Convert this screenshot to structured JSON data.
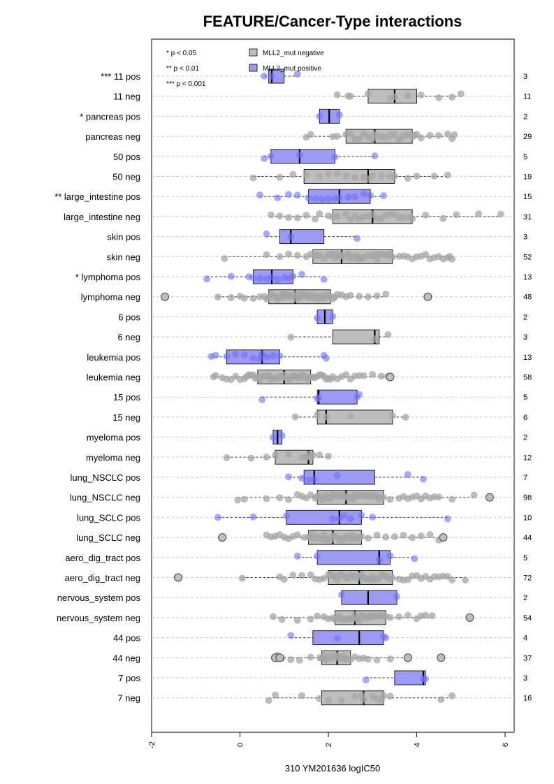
{
  "chart_data": {
    "type": "boxplot",
    "orientation": "horizontal",
    "title": "FEATURE/Cancer-Type interactions",
    "xlabel": "310 YM201636 logIC50",
    "xlim": [
      -2,
      6
    ],
    "xticks": [
      "-2",
      "0",
      "2",
      "4",
      "6"
    ],
    "grid": "horizontal dashed lines at each row",
    "legend_position": "top-left",
    "legend": [
      {
        "name": "MLL2_mut negative",
        "color": "#bebebe"
      },
      {
        "name": "MLL2_mut positive",
        "color": "#9b9bf4"
      }
    ],
    "significance_notes": [
      "* p < 0.05",
      "** p < 0.01",
      "*** p < 0.001"
    ],
    "series_colors": {
      "neg_fill": "#bebebe",
      "pos_fill": "#9b9bf4",
      "neg_point": "#a6a6a6",
      "pos_point": "#6f6ff5"
    },
    "rows": [
      {
        "label": "*** 11 pos",
        "group": "pos",
        "n": "3",
        "q1": 0.65,
        "median": 0.72,
        "q3": 1.0,
        "wlo": 0.55,
        "whi": 1.3,
        "points": [
          0.55,
          0.72,
          1.3
        ],
        "outliers": []
      },
      {
        "label": "11 neg",
        "group": "neg",
        "n": "11",
        "q1": 2.9,
        "median": 3.5,
        "q3": 4.0,
        "wlo": 2.2,
        "whi": 5.0,
        "points": [
          2.2,
          2.45,
          2.5,
          2.9,
          3.4,
          3.5,
          3.8,
          4.1,
          4.5,
          4.8,
          5.0
        ],
        "outliers": []
      },
      {
        "label": "* pancreas pos",
        "group": "pos",
        "n": "2",
        "q1": 1.8,
        "median": 2.02,
        "q3": 2.25,
        "wlo": 1.8,
        "whi": 2.25,
        "points": [
          1.8,
          2.25
        ],
        "outliers": []
      },
      {
        "label": "pancreas neg",
        "group": "neg",
        "n": "29",
        "q1": 2.4,
        "median": 3.05,
        "q3": 3.9,
        "wlo": 1.5,
        "whi": 4.85,
        "points": [
          1.5,
          1.6,
          2.1,
          2.2,
          2.4,
          2.5,
          2.6,
          2.7,
          2.8,
          2.9,
          3.0,
          3.05,
          3.1,
          3.2,
          3.3,
          3.4,
          3.5,
          3.6,
          3.7,
          3.8,
          3.9,
          3.95,
          4.0,
          4.1,
          4.3,
          4.5,
          4.7,
          4.8,
          4.85
        ],
        "outliers": []
      },
      {
        "label": "50 pos",
        "group": "pos",
        "n": "5",
        "q1": 0.7,
        "median": 1.35,
        "q3": 2.15,
        "wlo": 0.55,
        "whi": 3.05,
        "points": [
          0.55,
          0.7,
          1.35,
          2.15,
          3.05
        ],
        "outliers": []
      },
      {
        "label": "50 neg",
        "group": "neg",
        "n": "19",
        "q1": 1.45,
        "median": 2.9,
        "q3": 3.5,
        "wlo": 0.3,
        "whi": 4.7,
        "points": [
          0.3,
          0.9,
          1.2,
          1.5,
          1.8,
          2.0,
          2.2,
          2.4,
          2.6,
          2.8,
          2.9,
          3.0,
          3.2,
          3.4,
          3.5,
          3.8,
          4.0,
          4.4,
          4.7
        ],
        "outliers": []
      },
      {
        "label": "** large_intestine pos",
        "group": "pos",
        "n": "15",
        "q1": 1.55,
        "median": 2.25,
        "q3": 2.95,
        "wlo": 0.45,
        "whi": 3.25,
        "points": [
          0.45,
          0.85,
          1.1,
          1.3,
          1.55,
          1.7,
          1.85,
          2.0,
          2.15,
          2.25,
          2.45,
          2.6,
          2.8,
          2.95,
          3.25
        ],
        "outliers": []
      },
      {
        "label": "large_intestine neg",
        "group": "neg",
        "n": "31",
        "q1": 2.1,
        "median": 3.0,
        "q3": 3.9,
        "wlo": 0.7,
        "whi": 5.9,
        "points": [
          0.7,
          0.9,
          1.1,
          1.3,
          1.5,
          1.7,
          1.8,
          2.0,
          2.1,
          2.2,
          2.4,
          2.5,
          2.6,
          2.7,
          2.8,
          2.9,
          3.0,
          3.1,
          3.2,
          3.3,
          3.4,
          3.5,
          3.6,
          3.7,
          3.85,
          3.9,
          4.2,
          4.6,
          4.9,
          5.4,
          5.9
        ],
        "outliers": []
      },
      {
        "label": "skin pos",
        "group": "pos",
        "n": "3",
        "q1": 0.9,
        "median": 1.15,
        "q3": 1.9,
        "wlo": 0.6,
        "whi": 2.65,
        "points": [
          0.6,
          1.15,
          2.65
        ],
        "outliers": []
      },
      {
        "label": "skin neg",
        "group": "neg",
        "n": "52",
        "q1": 1.65,
        "median": 2.3,
        "q3": 3.45,
        "wlo": -0.35,
        "whi": 4.8,
        "points": [
          -0.35,
          0.6,
          0.9,
          1.1,
          1.3,
          1.5,
          1.6,
          1.7,
          1.75,
          1.8,
          1.9,
          2.0,
          2.05,
          2.1,
          2.15,
          2.2,
          2.25,
          2.3,
          2.35,
          2.4,
          2.45,
          2.5,
          2.55,
          2.6,
          2.65,
          2.7,
          2.75,
          2.8,
          2.9,
          3.0,
          3.05,
          3.1,
          3.15,
          3.2,
          3.3,
          3.35,
          3.4,
          3.45,
          3.6,
          3.7,
          3.8,
          3.9,
          4.0,
          4.1,
          4.2,
          4.3,
          4.4,
          4.5,
          4.6,
          4.7,
          4.75,
          4.8
        ],
        "outliers": []
      },
      {
        "label": "* lymphoma pos",
        "group": "pos",
        "n": "13",
        "q1": 0.3,
        "median": 0.72,
        "q3": 1.2,
        "wlo": -0.75,
        "whi": 1.9,
        "points": [
          -0.75,
          -0.2,
          0.2,
          0.3,
          0.45,
          0.6,
          0.72,
          0.85,
          1.0,
          1.1,
          1.2,
          1.4,
          1.9
        ],
        "outliers": []
      },
      {
        "label": "lymphoma neg",
        "group": "neg",
        "n": "48",
        "q1": 0.65,
        "median": 1.25,
        "q3": 2.05,
        "wlo": -0.5,
        "whi": 3.3,
        "points": [
          -0.5,
          -0.2,
          0.0,
          0.1,
          0.3,
          0.45,
          0.55,
          0.6,
          0.65,
          0.7,
          0.75,
          0.8,
          0.85,
          0.9,
          0.95,
          1.0,
          1.05,
          1.1,
          1.15,
          1.2,
          1.25,
          1.3,
          1.35,
          1.4,
          1.45,
          1.5,
          1.55,
          1.6,
          1.65,
          1.7,
          1.75,
          1.8,
          1.85,
          1.9,
          1.95,
          2.0,
          2.05,
          2.1,
          2.15,
          2.2,
          2.3,
          2.4,
          2.5,
          2.7,
          2.9,
          3.1,
          3.3,
          1.0
        ],
        "outliers": [
          -1.7,
          4.25
        ]
      },
      {
        "label": "6 pos",
        "group": "pos",
        "n": "2",
        "q1": 1.75,
        "median": 1.92,
        "q3": 2.1,
        "wlo": 1.75,
        "whi": 2.1,
        "points": [
          1.75,
          2.1
        ],
        "outliers": []
      },
      {
        "label": "6 neg",
        "group": "neg",
        "n": "3",
        "q1": 2.1,
        "median": 3.05,
        "q3": 3.15,
        "wlo": 1.15,
        "whi": 3.35,
        "points": [
          1.15,
          3.05,
          3.35
        ],
        "outliers": []
      },
      {
        "label": "leukemia pos",
        "group": "pos",
        "n": "13",
        "q1": -0.3,
        "median": 0.5,
        "q3": 0.9,
        "wlo": -0.65,
        "whi": 1.95,
        "points": [
          -0.65,
          -0.55,
          -0.3,
          -0.1,
          0.1,
          0.3,
          0.45,
          0.5,
          0.6,
          0.75,
          0.9,
          1.9,
          1.95
        ],
        "outliers": []
      },
      {
        "label": "leukemia neg",
        "group": "neg",
        "n": "58",
        "q1": 0.4,
        "median": 1.0,
        "q3": 1.6,
        "wlo": -0.6,
        "whi": 3.4,
        "points": [
          -0.6,
          -0.55,
          -0.4,
          -0.3,
          -0.2,
          -0.1,
          0.0,
          0.1,
          0.15,
          0.2,
          0.25,
          0.3,
          0.35,
          0.4,
          0.45,
          0.5,
          0.55,
          0.6,
          0.65,
          0.7,
          0.75,
          0.8,
          0.85,
          0.9,
          0.95,
          1.0,
          1.05,
          1.1,
          1.15,
          1.2,
          1.25,
          1.3,
          1.35,
          1.4,
          1.45,
          1.5,
          1.55,
          1.6,
          1.65,
          1.7,
          1.75,
          1.8,
          1.85,
          1.9,
          1.95,
          2.0,
          2.05,
          2.1,
          2.2,
          2.3,
          2.4,
          2.5,
          2.6,
          2.7,
          2.8,
          3.0,
          3.2,
          3.35
        ],
        "outliers": [
          3.4
        ]
      },
      {
        "label": "15 pos",
        "group": "pos",
        "n": "5",
        "q1": 1.75,
        "median": 1.78,
        "q3": 2.65,
        "wlo": 0.5,
        "whi": 2.7,
        "points": [
          0.5,
          1.75,
          1.78,
          2.65,
          2.7
        ],
        "outliers": []
      },
      {
        "label": "15 neg",
        "group": "neg",
        "n": "6",
        "q1": 1.75,
        "median": 1.95,
        "q3": 3.45,
        "wlo": 1.25,
        "whi": 3.75,
        "points": [
          1.25,
          1.75,
          1.95,
          2.5,
          3.45,
          3.75
        ],
        "outliers": []
      },
      {
        "label": "myeloma pos",
        "group": "pos",
        "n": "2",
        "q1": 0.75,
        "median": 0.85,
        "q3": 0.95,
        "wlo": 0.75,
        "whi": 0.95,
        "points": [
          0.75,
          0.95
        ],
        "outliers": []
      },
      {
        "label": "myeloma neg",
        "group": "neg",
        "n": "12",
        "q1": 0.8,
        "median": 1.55,
        "q3": 1.65,
        "wlo": -0.3,
        "whi": 2.0,
        "points": [
          -0.3,
          0.25,
          0.6,
          0.8,
          1.1,
          1.4,
          1.5,
          1.55,
          1.6,
          1.65,
          1.8,
          2.0
        ],
        "outliers": []
      },
      {
        "label": "lung_NSCLC pos",
        "group": "pos",
        "n": "7",
        "q1": 1.45,
        "median": 1.68,
        "q3": 3.05,
        "wlo": 1.1,
        "whi": 4.15,
        "points": [
          1.1,
          1.4,
          1.55,
          1.68,
          2.2,
          3.8,
          4.15
        ],
        "outliers": []
      },
      {
        "label": "lung_NSCLC neg",
        "group": "neg",
        "n": "98",
        "q1": 1.75,
        "median": 2.4,
        "q3": 3.25,
        "wlo": -0.05,
        "whi": 5.3,
        "points": [
          -0.05,
          0.1,
          0.6,
          0.9,
          1.1,
          1.3,
          1.4,
          1.5,
          1.6,
          1.7,
          1.75,
          1.8,
          1.85,
          1.9,
          1.95,
          2.0,
          2.05,
          2.1,
          2.15,
          2.2,
          2.25,
          2.3,
          2.35,
          2.4,
          2.45,
          2.5,
          2.55,
          2.6,
          2.65,
          2.7,
          2.75,
          2.8,
          2.85,
          2.9,
          2.95,
          3.0,
          3.05,
          3.1,
          3.15,
          3.2,
          3.25,
          3.4,
          3.6,
          3.7,
          3.8,
          3.9,
          4.0,
          4.1,
          4.2,
          4.3,
          4.4,
          4.5,
          4.8,
          5.3
        ],
        "outliers": [
          5.65
        ]
      },
      {
        "label": "lung_SCLC pos",
        "group": "pos",
        "n": "10",
        "q1": 1.05,
        "median": 2.25,
        "q3": 2.75,
        "wlo": -0.5,
        "whi": 4.7,
        "points": [
          -0.5,
          0.3,
          1.05,
          2.1,
          2.25,
          2.35,
          2.5,
          2.75,
          3.0,
          4.7
        ],
        "outliers": []
      },
      {
        "label": "lung_SCLC neg",
        "group": "neg",
        "n": "44",
        "q1": 1.55,
        "median": 2.1,
        "q3": 2.75,
        "wlo": 0.6,
        "whi": 4.6,
        "points": [
          0.6,
          0.7,
          0.8,
          0.9,
          1.0,
          1.1,
          1.2,
          1.3,
          1.45,
          1.55,
          1.6,
          1.65,
          1.7,
          1.75,
          1.8,
          1.85,
          1.9,
          1.95,
          2.0,
          2.05,
          2.1,
          2.15,
          2.2,
          2.25,
          2.3,
          2.35,
          2.4,
          2.45,
          2.5,
          2.55,
          2.6,
          2.65,
          2.7,
          2.75,
          2.9,
          3.1,
          3.3,
          3.5,
          3.7,
          3.9,
          4.1,
          4.3,
          4.5,
          4.6
        ],
        "outliers": [
          -0.4,
          4.6
        ]
      },
      {
        "label": "aero_dig_tract pos",
        "group": "pos",
        "n": "5",
        "q1": 1.75,
        "median": 3.15,
        "q3": 3.4,
        "wlo": 1.3,
        "whi": 3.95,
        "points": [
          1.3,
          1.75,
          3.15,
          3.4,
          3.95
        ],
        "outliers": []
      },
      {
        "label": "aero_dig_tract neg",
        "group": "neg",
        "n": "72",
        "q1": 2.0,
        "median": 2.7,
        "q3": 3.45,
        "wlo": 0.05,
        "whi": 5.1,
        "points": [
          0.05,
          0.9,
          1.0,
          1.2,
          1.4,
          1.6,
          1.7,
          1.8,
          1.9,
          2.0,
          2.05,
          2.1,
          2.15,
          2.2,
          2.25,
          2.3,
          2.35,
          2.4,
          2.45,
          2.5,
          2.55,
          2.6,
          2.65,
          2.7,
          2.75,
          2.8,
          2.85,
          2.9,
          2.95,
          3.0,
          3.05,
          3.1,
          3.15,
          3.2,
          3.25,
          3.3,
          3.35,
          3.4,
          3.45,
          3.6,
          3.7,
          3.8,
          3.9,
          4.0,
          4.1,
          4.2,
          4.3,
          4.4,
          4.5,
          4.6,
          4.7,
          4.8,
          5.1
        ],
        "outliers": [
          -1.4
        ]
      },
      {
        "label": "nervous_system pos",
        "group": "pos",
        "n": "2",
        "q1": 2.3,
        "median": 2.9,
        "q3": 3.55,
        "wlo": 2.3,
        "whi": 3.55,
        "points": [
          2.3,
          3.55
        ],
        "outliers": []
      },
      {
        "label": "nervous_system neg",
        "group": "neg",
        "n": "54",
        "q1": 2.15,
        "median": 2.6,
        "q3": 3.3,
        "wlo": 0.75,
        "whi": 4.35,
        "points": [
          0.75,
          0.95,
          1.3,
          1.6,
          1.75,
          1.9,
          2.0,
          2.1,
          2.15,
          2.2,
          2.25,
          2.3,
          2.35,
          2.4,
          2.45,
          2.5,
          2.55,
          2.6,
          2.65,
          2.7,
          2.75,
          2.8,
          2.85,
          2.9,
          2.95,
          3.0,
          3.05,
          3.1,
          3.15,
          3.2,
          3.25,
          3.3,
          3.4,
          3.6,
          3.8,
          4.0,
          4.1,
          4.2,
          4.35
        ],
        "outliers": [
          5.2
        ]
      },
      {
        "label": "44 pos",
        "group": "pos",
        "n": "4",
        "q1": 1.65,
        "median": 2.7,
        "q3": 3.25,
        "wlo": 1.15,
        "whi": 3.3,
        "points": [
          1.15,
          2.2,
          3.25,
          3.3
        ],
        "outliers": []
      },
      {
        "label": "44 neg",
        "group": "neg",
        "n": "37",
        "q1": 1.85,
        "median": 2.2,
        "q3": 2.5,
        "wlo": 0.8,
        "whi": 3.8,
        "points": [
          0.85,
          0.95,
          1.15,
          1.35,
          1.6,
          1.8,
          1.85,
          1.9,
          1.95,
          2.0,
          2.05,
          2.1,
          2.15,
          2.2,
          2.25,
          2.3,
          2.35,
          2.4,
          2.45,
          2.5,
          2.6,
          2.7,
          2.8,
          2.9,
          3.1,
          3.4,
          3.8
        ],
        "outliers": [
          0.8,
          0.9,
          3.8,
          4.55
        ]
      },
      {
        "label": "7 pos",
        "group": "pos",
        "n": "3",
        "q1": 3.5,
        "median": 4.15,
        "q3": 4.2,
        "wlo": 2.85,
        "whi": 4.2,
        "points": [
          2.85,
          4.15,
          4.2
        ],
        "outliers": []
      },
      {
        "label": "7 neg",
        "group": "neg",
        "n": "16",
        "q1": 1.85,
        "median": 2.8,
        "q3": 3.25,
        "wlo": 0.65,
        "whi": 4.8,
        "points": [
          0.65,
          0.8,
          1.4,
          1.8,
          2.0,
          2.3,
          2.6,
          2.75,
          2.8,
          3.0,
          3.1,
          3.2,
          3.25,
          3.4,
          4.55,
          4.8
        ],
        "outliers": []
      }
    ]
  }
}
